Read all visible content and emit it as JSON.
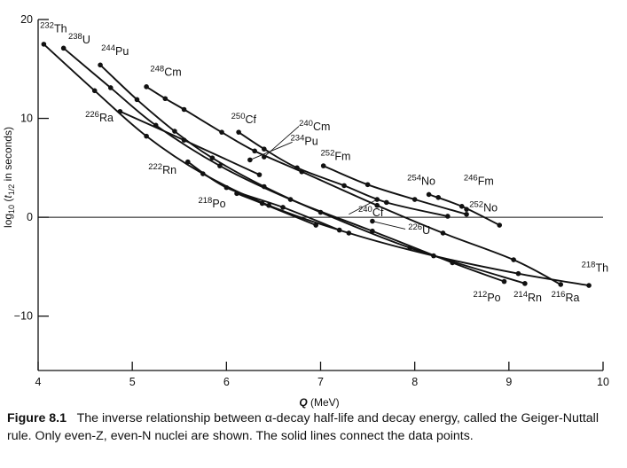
{
  "chart_data": {
    "type": "line",
    "title": "",
    "xlabel": "Q (MeV)",
    "ylabel": "log10 (t1/2 in seconds)",
    "xlim": [
      4,
      10
    ],
    "ylim": [
      -15.5,
      20
    ],
    "xticks": [
      4,
      5,
      6,
      7,
      8,
      9,
      10
    ],
    "yticks": [
      -10,
      0,
      10,
      20
    ],
    "grid": false,
    "reference_line_y": 0,
    "series": [
      {
        "name": "Th",
        "mass": "232",
        "end_name": "Th",
        "end_mass": "218",
        "color": "#111111",
        "x": [
          4.06,
          4.6,
          5.15,
          5.75,
          6.45,
          7.3,
          8.2,
          9.1,
          9.85
        ],
        "y": [
          17.5,
          12.8,
          8.2,
          4.4,
          1.2,
          -1.6,
          -3.9,
          -5.7,
          -6.9
        ]
      },
      {
        "name": "U",
        "mass": "238",
        "end_name": "Po",
        "end_mass": "212",
        "color": "#111111",
        "x": [
          4.27,
          4.77,
          5.25,
          5.93,
          6.68,
          7.55,
          8.4,
          8.95
        ],
        "y": [
          17.1,
          13.1,
          9.3,
          5.2,
          1.8,
          -1.4,
          -4.6,
          -6.5
        ]
      },
      {
        "name": "Pu",
        "mass": "244",
        "end_name": "Rn",
        "end_mass": "214",
        "color": "#111111",
        "x": [
          4.66,
          5.05,
          5.45,
          5.85,
          6.4,
          7.0,
          7.95,
          9.17
        ],
        "y": [
          15.4,
          11.9,
          8.7,
          6.0,
          3.1,
          0.5,
          -3.1,
          -6.7
        ]
      },
      {
        "name": "Cm",
        "mass": "248",
        "end_name": "Ra",
        "end_mass": "216",
        "color": "#111111",
        "x": [
          5.15,
          5.35,
          5.55,
          5.95,
          6.3,
          6.8,
          7.6,
          8.3,
          9.05,
          9.55
        ],
        "y": [
          13.2,
          12.0,
          10.9,
          8.6,
          6.7,
          4.6,
          1.2,
          -1.6,
          -4.3,
          -6.8
        ]
      },
      {
        "name": "Ra",
        "mass": "226",
        "color": "#111111",
        "x": [
          4.87,
          5.55,
          6.35
        ],
        "y": [
          10.7,
          7.8,
          4.3
        ]
      },
      {
        "name": "Rn",
        "mass": "222",
        "color": "#111111",
        "x": [
          5.59,
          6.0,
          6.6,
          7.2
        ],
        "y": [
          5.6,
          3.0,
          1.0,
          -1.3
        ]
      },
      {
        "name": "Po",
        "mass": "218",
        "color": "#111111",
        "x": [
          6.11,
          6.38,
          6.95
        ],
        "y": [
          2.4,
          1.4,
          -0.8
        ]
      },
      {
        "name": "Cf",
        "mass": "250",
        "color": "#111111",
        "x": [
          6.13,
          6.4,
          6.75,
          7.25,
          7.7,
          8.35
        ],
        "y": [
          8.6,
          6.9,
          5.0,
          3.2,
          1.5,
          0.1
        ]
      },
      {
        "name": "Fm",
        "mass": "252",
        "color": "#111111",
        "x": [
          7.03,
          7.5,
          8.0,
          8.55
        ],
        "y": [
          5.2,
          3.3,
          1.8,
          0.3
        ]
      },
      {
        "name": "No",
        "mass": "254",
        "color": "#111111",
        "x": [
          8.15,
          8.5,
          8.9
        ],
        "y": [
          2.3,
          1.1,
          -0.8
        ]
      }
    ],
    "points_only": [
      {
        "name": "Cm",
        "mass": "240",
        "x": 6.4,
        "y": 6.1
      },
      {
        "name": "Pu",
        "mass": "234",
        "x": 6.25,
        "y": 5.8
      },
      {
        "name": "Cf",
        "mass": "240",
        "x": 7.6,
        "y": 1.8
      },
      {
        "name": "U",
        "mass": "226",
        "x": 7.55,
        "y": -0.4
      },
      {
        "name": "Fm",
        "mass": "246",
        "x": 8.25,
        "y": 2.0
      },
      {
        "name": "No",
        "mass": "252",
        "x": 8.55,
        "y": 0.8
      }
    ],
    "annotations": [
      {
        "mass": "232",
        "name": "Th",
        "x": 4.02,
        "y": 18.7
      },
      {
        "mass": "238",
        "name": "U",
        "x": 4.32,
        "y": 17.6
      },
      {
        "mass": "244",
        "name": "Pu",
        "x": 4.67,
        "y": 16.4
      },
      {
        "mass": "248",
        "name": "Cm",
        "x": 5.19,
        "y": 14.3
      },
      {
        "mass": "226",
        "name": "Ra",
        "x": 4.5,
        "y": 9.7
      },
      {
        "mass": "250",
        "name": "Cf",
        "x": 6.05,
        "y": 9.5
      },
      {
        "mass": "240",
        "name": "Cm",
        "x": 6.77,
        "y": 8.8
      },
      {
        "mass": "234",
        "name": "Pu",
        "x": 6.68,
        "y": 7.3
      },
      {
        "mass": "222",
        "name": "Rn",
        "x": 5.17,
        "y": 4.4
      },
      {
        "mass": "252",
        "name": "Fm",
        "x": 7.0,
        "y": 5.8
      },
      {
        "mass": "218",
        "name": "Po",
        "x": 5.7,
        "y": 1.0
      },
      {
        "mass": "254",
        "name": "No",
        "x": 7.92,
        "y": 3.3
      },
      {
        "mass": "246",
        "name": "Fm",
        "x": 8.52,
        "y": 3.3
      },
      {
        "mass": "252",
        "name": "No",
        "x": 8.58,
        "y": 0.6
      },
      {
        "mass": "240",
        "name": "Cf",
        "x": 7.4,
        "y": 0.1
      },
      {
        "mass": "226",
        "name": "U",
        "x": 7.93,
        "y": -1.7
      },
      {
        "mass": "218",
        "name": "Th",
        "x": 9.77,
        "y": -5.5
      },
      {
        "mass": "212",
        "name": "Po",
        "x": 8.62,
        "y": -8.5
      },
      {
        "mass": "214",
        "name": "Rn",
        "x": 9.05,
        "y": -8.5
      },
      {
        "mass": "216",
        "name": "Ra",
        "x": 9.45,
        "y": -8.5
      }
    ],
    "leader_lines": [
      {
        "from": [
          6.77,
          9.2
        ],
        "to": [
          6.4,
          6.1
        ]
      },
      {
        "from": [
          6.7,
          7.6
        ],
        "to": [
          6.25,
          5.8
        ]
      },
      {
        "from": [
          7.3,
          0.3
        ],
        "to": [
          7.6,
          1.8
        ]
      },
      {
        "from": [
          7.9,
          -1.2
        ],
        "to": [
          7.55,
          -0.4
        ]
      }
    ]
  },
  "caption": {
    "label": "Figure 8.1",
    "text": "The inverse relationship between α-decay half-life and decay energy, called the Geiger-Nuttall rule. Only even-Z, even-N nuclei are shown. The solid lines connect the data points."
  }
}
